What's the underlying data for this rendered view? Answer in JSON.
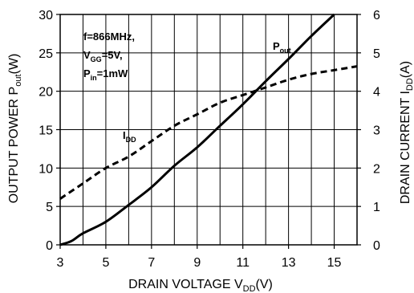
{
  "chart_data": {
    "type": "line",
    "title": "",
    "xlabel": {
      "main": "DRAIN VOLTAGE V",
      "sub": "DD",
      "tail": "(V)"
    },
    "ylabel_left": {
      "main": "OUTPUT POWER P",
      "sub": "out",
      "tail": "(W)"
    },
    "ylabel_right": {
      "main": "DRAIN CURRENT I",
      "sub": "DD",
      "tail": "(A)"
    },
    "xlim": [
      3,
      16
    ],
    "ylim_left": [
      0,
      30
    ],
    "ylim_right": [
      0,
      6
    ],
    "x_ticks": [
      "3",
      "5",
      "7",
      "9",
      "11",
      "13",
      "15"
    ],
    "y_left_ticks": [
      "0",
      "5",
      "10",
      "15",
      "20",
      "25",
      "30"
    ],
    "y_right_ticks": [
      "0",
      "1",
      "2",
      "3",
      "4",
      "5",
      "6"
    ],
    "grid": true,
    "annotations": {
      "conditions": [
        {
          "main": "f=866MHz,",
          "sub": "",
          "tail": ""
        },
        {
          "main": "V",
          "sub": "GG",
          "tail": "=5V,"
        },
        {
          "main": "P",
          "sub": "in",
          "tail": "=1mW"
        }
      ],
      "pout_label": {
        "main": "P",
        "sub": "out"
      },
      "idd_label": {
        "main": "I",
        "sub": "DD"
      }
    },
    "series": [
      {
        "name": "Pout",
        "axis": "left",
        "style": "solid",
        "x": [
          3,
          3.5,
          4,
          5,
          6,
          7,
          8,
          9,
          10,
          11,
          12,
          13,
          14,
          15
        ],
        "y": [
          0,
          0.5,
          1.5,
          3,
          5.2,
          7.5,
          10.3,
          12.7,
          15.5,
          18.3,
          21.3,
          24.2,
          27.2,
          30
        ]
      },
      {
        "name": "IDD",
        "axis": "right",
        "style": "dashed",
        "x": [
          3,
          4,
          5,
          6,
          7,
          8,
          9,
          10,
          11,
          12,
          13,
          14,
          15,
          16
        ],
        "y": [
          1.2,
          1.6,
          2.0,
          2.3,
          2.7,
          3.1,
          3.4,
          3.7,
          3.9,
          4.1,
          4.3,
          4.45,
          4.55,
          4.65
        ]
      }
    ]
  }
}
